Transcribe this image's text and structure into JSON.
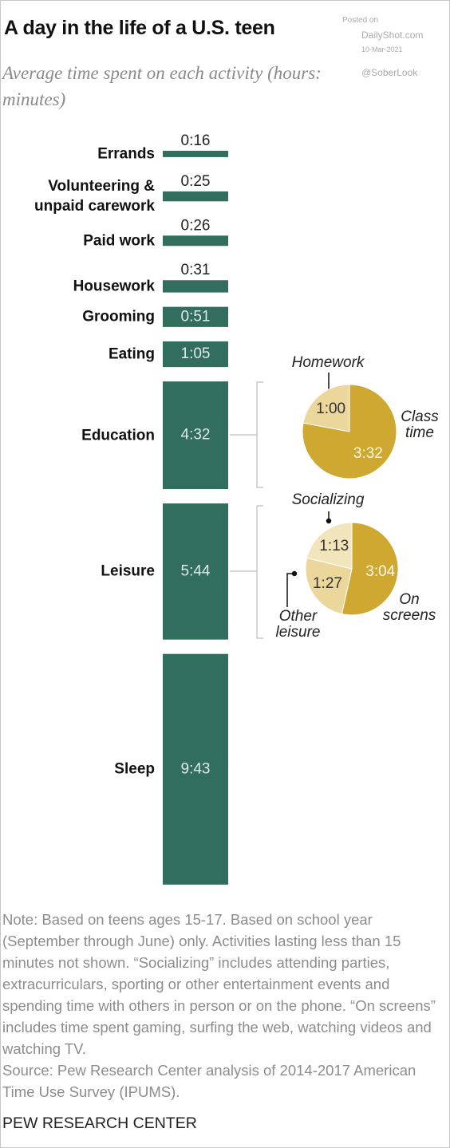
{
  "watermark": {
    "posted": "Posted on",
    "site": "DailyShot.com",
    "date": "10-Mar-2021",
    "handle": "@SoberLook"
  },
  "chart_data": [
    {
      "type": "bar",
      "title": "A day in the life of a U.S. teen",
      "subtitle": "Average time spent on each activity (hours: minutes)",
      "categories": [
        "Errands",
        "Volunteering & unpaid carework",
        "Paid work",
        "Housework",
        "Grooming",
        "Eating",
        "Education",
        "Leisure",
        "Sleep"
      ],
      "values": [
        16,
        25,
        26,
        31,
        51,
        65,
        272,
        344,
        583
      ],
      "value_labels": [
        "0:16",
        "0:25",
        "0:26",
        "0:31",
        "0:51",
        "1:05",
        "4:32",
        "5:44",
        "9:43"
      ],
      "color": "#326e5e"
    },
    {
      "type": "pie",
      "categories": [
        "Class time",
        "Homework"
      ],
      "values": [
        212,
        60
      ],
      "value_labels": [
        "3:32",
        "1:00"
      ],
      "colors": [
        "#cfa831",
        "#ebd69c"
      ]
    },
    {
      "type": "pie",
      "categories": [
        "On screens",
        "Other leisure",
        "Socializing"
      ],
      "values": [
        184,
        87,
        73
      ],
      "value_labels": [
        "3:04",
        "1:27",
        "1:13"
      ],
      "colors": [
        "#cfa831",
        "#ebd69c",
        "#f2e5bc"
      ]
    }
  ],
  "note": "Note: Based on teens ages 15-17. Based on school year (September through June) only. Activities lasting less than 15 minutes not shown. “Socializing” includes attending parties, extracurriculars, sporting or other entertainment events and spending time with others in person or on the phone. “On screens” includes time spent gaming, surfing the web, watching videos and watching TV.",
  "source": "Source: Pew Research Center analysis of 2014-2017 American Time Use Survey (IPUMS).",
  "publisher": "PEW RESEARCH CENTER"
}
